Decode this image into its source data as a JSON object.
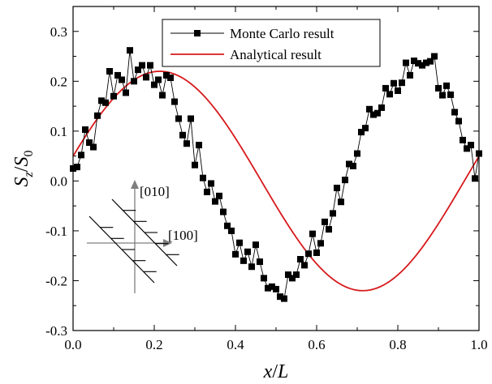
{
  "chart_data": {
    "type": "scatter",
    "xlabel": "x/L",
    "ylabel": "S_z/S_0",
    "xlim": [
      0,
      1
    ],
    "ylim": [
      -0.3,
      0.35
    ],
    "x_ticks": [
      "0.0",
      "0.2",
      "0.4",
      "0.6",
      "0.8",
      "1.0"
    ],
    "y_ticks": [
      "-0.3",
      "-0.2",
      "-0.1",
      "0.0",
      "0.1",
      "0.2",
      "0.3"
    ],
    "legend": {
      "position": "top-center",
      "entries": [
        "Monte Carlo result",
        "Analytical result"
      ]
    },
    "series": [
      {
        "name": "Monte Carlo result",
        "style": "line-with-square-markers",
        "color": "#000000",
        "x": [
          0.0,
          0.01,
          0.02,
          0.03,
          0.04,
          0.05,
          0.06,
          0.07,
          0.08,
          0.09,
          0.1,
          0.11,
          0.12,
          0.13,
          0.14,
          0.15,
          0.16,
          0.17,
          0.18,
          0.19,
          0.2,
          0.21,
          0.22,
          0.23,
          0.24,
          0.25,
          0.26,
          0.27,
          0.28,
          0.29,
          0.3,
          0.31,
          0.32,
          0.33,
          0.34,
          0.35,
          0.36,
          0.37,
          0.38,
          0.39,
          0.4,
          0.41,
          0.42,
          0.43,
          0.44,
          0.45,
          0.46,
          0.47,
          0.48,
          0.49,
          0.5,
          0.51,
          0.52,
          0.53,
          0.54,
          0.55,
          0.56,
          0.57,
          0.58,
          0.59,
          0.6,
          0.61,
          0.62,
          0.63,
          0.64,
          0.65,
          0.66,
          0.67,
          0.68,
          0.69,
          0.7,
          0.71,
          0.72,
          0.73,
          0.74,
          0.75,
          0.76,
          0.77,
          0.78,
          0.79,
          0.8,
          0.81,
          0.82,
          0.83,
          0.84,
          0.85,
          0.86,
          0.87,
          0.88,
          0.89,
          0.9,
          0.91,
          0.92,
          0.93,
          0.94,
          0.95,
          0.96,
          0.97,
          0.98,
          0.99,
          1.0
        ],
        "y": [
          0.025,
          0.028,
          0.052,
          0.103,
          0.077,
          0.068,
          0.131,
          0.161,
          0.157,
          0.22,
          0.17,
          0.212,
          0.203,
          0.177,
          0.262,
          0.2,
          0.223,
          0.232,
          0.208,
          0.232,
          0.193,
          0.203,
          0.172,
          0.212,
          0.207,
          0.159,
          0.125,
          0.092,
          0.075,
          0.125,
          0.032,
          0.072,
          0.006,
          -0.022,
          -0.005,
          -0.041,
          -0.03,
          -0.062,
          -0.09,
          -0.1,
          -0.147,
          -0.124,
          -0.16,
          -0.142,
          -0.172,
          -0.128,
          -0.162,
          -0.195,
          -0.215,
          -0.212,
          -0.217,
          -0.232,
          -0.236,
          -0.188,
          -0.195,
          -0.188,
          -0.157,
          -0.169,
          -0.146,
          -0.106,
          -0.144,
          -0.125,
          -0.082,
          -0.097,
          -0.065,
          -0.014,
          -0.042,
          0.002,
          0.034,
          0.03,
          0.055,
          0.098,
          0.106,
          0.144,
          0.133,
          0.136,
          0.147,
          0.186,
          0.174,
          0.196,
          0.181,
          0.197,
          0.237,
          0.212,
          0.241,
          0.236,
          0.232,
          0.237,
          0.24,
          0.25,
          0.186,
          0.172,
          0.191,
          0.173,
          0.138,
          0.12,
          0.082,
          0.065,
          0.072,
          0.005,
          0.055
        ]
      },
      {
        "name": "Analytical result",
        "style": "line",
        "color": "#d7191c",
        "function": "0.22*sin(2*pi*x + 0.228)"
      }
    ],
    "annotations": [
      "[010]",
      "[100]"
    ]
  }
}
